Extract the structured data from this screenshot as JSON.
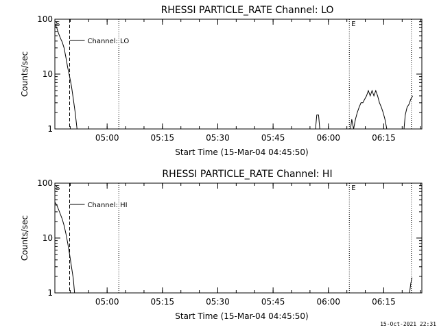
{
  "footer_timestamp": "15-Oct-2021 22:31",
  "chart_data": [
    {
      "type": "line",
      "title": "RHESSI PARTICLE_RATE Channel: LO",
      "xlabel": "Start Time (15-Mar-04 04:45:50)",
      "ylabel": "Counts/sec",
      "yscale": "log",
      "ylim": [
        1,
        100
      ],
      "xlim": [
        "04:45:50",
        "06:25:20"
      ],
      "yticks": [
        "1",
        "10",
        "100"
      ],
      "xticks": [
        "05:00",
        "05:15",
        "05:30",
        "05:45",
        "06:00",
        "06:15"
      ],
      "legend": "Channel: LO",
      "markers": {
        "start": {
          "label": "S",
          "x": "04:45:50"
        },
        "end": {
          "label": "E",
          "x": "06:05:40"
        },
        "dashed_line": {
          "x": "04:49:50"
        },
        "dotted_lines": [
          "05:03:10",
          "06:05:40",
          "06:22:30"
        ]
      },
      "series": [
        {
          "segments": [
            [
              [
                "04:45:50",
                80
              ],
              [
                "04:46:20",
                70
              ],
              [
                "04:46:50",
                55
              ],
              [
                "04:47:20",
                45
              ],
              [
                "04:47:50",
                38
              ],
              [
                "04:48:20",
                30
              ],
              [
                "04:48:50",
                20
              ],
              [
                "04:49:20",
                13
              ],
              [
                "04:49:50",
                9
              ],
              [
                "04:50:20",
                6
              ],
              [
                "04:50:50",
                3.5
              ],
              [
                "04:51:20",
                2
              ],
              [
                "04:51:50",
                1
              ]
            ],
            [
              [
                "05:56:30",
                1
              ],
              [
                "05:56:50",
                1.8
              ],
              [
                "05:57:20",
                1.8
              ],
              [
                "05:57:40",
                1
              ]
            ],
            [
              [
                "06:06:00",
                1
              ],
              [
                "06:06:20",
                1.5
              ],
              [
                "06:06:50",
                1
              ],
              [
                "06:07:20",
                1.5
              ],
              [
                "06:07:50",
                2
              ],
              [
                "06:08:20",
                2.5
              ],
              [
                "06:08:50",
                3
              ],
              [
                "06:09:20",
                3
              ],
              [
                "06:09:50",
                3.5
              ],
              [
                "06:10:20",
                4
              ],
              [
                "06:10:50",
                5
              ],
              [
                "06:11:20",
                4
              ],
              [
                "06:11:50",
                5
              ],
              [
                "06:12:20",
                4
              ],
              [
                "06:12:50",
                5
              ],
              [
                "06:13:20",
                4
              ],
              [
                "06:13:50",
                3
              ],
              [
                "06:14:20",
                2.5
              ],
              [
                "06:14:50",
                2
              ],
              [
                "06:15:20",
                1.5
              ],
              [
                "06:15:50",
                1
              ]
            ],
            [
              [
                "06:20:30",
                1
              ],
              [
                "06:20:50",
                1.8
              ],
              [
                "06:21:20",
                2.5
              ],
              [
                "06:21:50",
                2.8
              ],
              [
                "06:22:20",
                3.5
              ],
              [
                "06:22:50",
                4
              ]
            ]
          ]
        }
      ]
    },
    {
      "type": "line",
      "title": "RHESSI PARTICLE_RATE Channel: HI",
      "xlabel": "Start Time (15-Mar-04 04:45:50)",
      "ylabel": "Counts/sec",
      "yscale": "log",
      "ylim": [
        1,
        100
      ],
      "xlim": [
        "04:45:50",
        "06:25:20"
      ],
      "yticks": [
        "1",
        "10",
        "100"
      ],
      "xticks": [
        "05:00",
        "05:15",
        "05:30",
        "05:45",
        "06:00",
        "06:15"
      ],
      "legend": "Channel: HI",
      "markers": {
        "start": {
          "label": "S",
          "x": "04:45:50"
        },
        "end": {
          "label": "E",
          "x": "06:05:40"
        },
        "dashed_line": {
          "x": "04:49:50"
        },
        "dotted_lines": [
          "05:03:10",
          "06:05:40",
          "06:22:30"
        ]
      },
      "series": [
        {
          "segments": [
            [
              [
                "04:45:50",
                45
              ],
              [
                "04:46:20",
                40
              ],
              [
                "04:46:50",
                33
              ],
              [
                "04:47:20",
                27
              ],
              [
                "04:47:50",
                22
              ],
              [
                "04:48:20",
                17
              ],
              [
                "04:48:50",
                12
              ],
              [
                "04:49:20",
                8
              ],
              [
                "04:49:50",
                5
              ],
              [
                "04:50:20",
                3
              ],
              [
                "04:50:50",
                1.8
              ],
              [
                "04:51:10",
                1
              ]
            ],
            [
              [
                "06:22:00",
                1
              ],
              [
                "06:22:20",
                1.5
              ],
              [
                "06:22:40",
                1.9
              ]
            ]
          ]
        }
      ]
    }
  ]
}
